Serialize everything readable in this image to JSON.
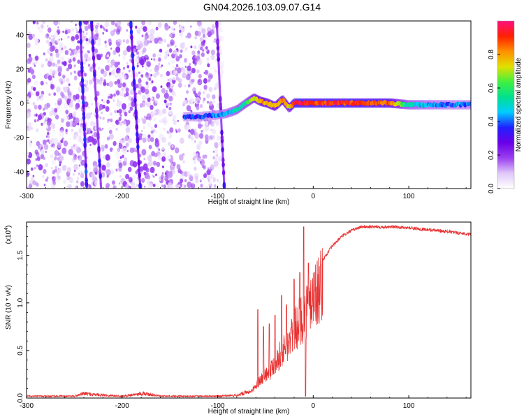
{
  "figure": {
    "title": "GN04.2026.103.09.07.G14"
  },
  "chart_data": [
    {
      "type": "heatmap",
      "panel": "spectrogram",
      "title": "GN04.2026.103.09.07.G14",
      "xlabel": "Height of straight line (km)",
      "ylabel": "Frequency (Hz)",
      "xlim": [
        -300,
        165
      ],
      "ylim": [
        -50,
        48
      ],
      "x_ticks": [
        -300,
        -200,
        -100,
        0,
        100
      ],
      "y_ticks": [
        -40,
        -20,
        0,
        20,
        40
      ],
      "colorbar": {
        "label": "Normalized spectral amplitude",
        "range": [
          0.0,
          1.0
        ],
        "ticks": [
          "0.0",
          "0.2",
          "0.4",
          "0.6",
          "0.8"
        ],
        "tick_values": [
          0.0,
          0.2,
          0.4,
          0.6,
          0.8
        ],
        "colors": [
          "#ffffff",
          "#e0c8f8",
          "#9a40f0",
          "#6a00e8",
          "#2020ff",
          "#00ccff",
          "#00e090",
          "#40f040",
          "#e0e000",
          "#ff9000",
          "#ff2000",
          "#ff1080"
        ]
      },
      "ridge": {
        "description": "carrier frequency vs height",
        "x": [
          -135,
          -120,
          -100,
          -90,
          -80,
          -70,
          -62,
          -55,
          -48,
          -40,
          -32,
          -25,
          -20,
          -10,
          0,
          20,
          50,
          80,
          100,
          120,
          140,
          165
        ],
        "y": [
          -8,
          -8,
          -7,
          -6,
          -4,
          0,
          3,
          1,
          0,
          -2,
          2,
          -3,
          0,
          0,
          0,
          0,
          0,
          0,
          -1,
          -1,
          -1,
          -1
        ],
        "amplitude": [
          0.35,
          0.35,
          0.4,
          0.45,
          0.5,
          0.55,
          0.7,
          0.8,
          0.8,
          0.75,
          0.85,
          0.7,
          0.9,
          0.95,
          0.9,
          0.9,
          0.9,
          0.85,
          0.5,
          0.45,
          0.4,
          0.4
        ]
      },
      "streaks": [
        {
          "x0": -244,
          "x1": -237,
          "amplitude": 0.25
        },
        {
          "x0": -232,
          "x1": -222,
          "amplitude": 0.2
        },
        {
          "x0": -191,
          "x1": -181,
          "amplitude": 0.25
        },
        {
          "x0": -101,
          "x1": -93,
          "amplitude": 0.2
        }
      ],
      "noise_region": {
        "x_from": -300,
        "x_to": -95
      }
    },
    {
      "type": "line",
      "panel": "snr",
      "xlabel": "Height of straight line (km)",
      "ylabel": "SNR (10 * v/v)",
      "y_scale_label": "(x10",
      "y_scale_exp": "4",
      "xlim": [
        -300,
        165
      ],
      "ylim": [
        0,
        1.85
      ],
      "x_ticks": [
        -300,
        -200,
        -100,
        0,
        100
      ],
      "y_ticks": [
        0.0,
        0.5,
        1.0,
        1.5
      ],
      "y_tick_labels": [
        "0.0",
        "0.5",
        "1.0",
        "1.5"
      ],
      "color": "#e83030",
      "envelope_x": [
        -300,
        -250,
        -240,
        -230,
        -200,
        -180,
        -170,
        -160,
        -100,
        -80,
        -70,
        -65,
        -60,
        -55,
        -50,
        -45,
        -40,
        -35,
        -30,
        -25,
        -20,
        -15,
        -10,
        -5,
        0,
        10,
        20,
        30,
        40,
        50,
        60,
        80,
        100,
        120,
        140,
        165
      ],
      "envelope_y": [
        0.02,
        0.02,
        0.05,
        0.04,
        0.02,
        0.05,
        0.04,
        0.02,
        0.02,
        0.03,
        0.06,
        0.09,
        0.15,
        0.25,
        0.3,
        0.35,
        0.45,
        0.55,
        0.62,
        0.7,
        0.85,
        0.95,
        1.05,
        1.15,
        1.3,
        1.45,
        1.6,
        1.7,
        1.76,
        1.8,
        1.8,
        1.8,
        1.79,
        1.77,
        1.75,
        1.72
      ],
      "spikes": [
        {
          "x": -58,
          "y": 0.93
        },
        {
          "x": -52,
          "y": 0.75
        },
        {
          "x": -46,
          "y": 0.78
        },
        {
          "x": -40,
          "y": 0.87
        },
        {
          "x": -33,
          "y": 1.08
        },
        {
          "x": -28,
          "y": 0.98
        },
        {
          "x": -20,
          "y": 1.25
        },
        {
          "x": -14,
          "y": 1.32
        },
        {
          "x": -10,
          "y": 1.8
        },
        {
          "x": -8,
          "y": 0.02
        },
        {
          "x": -5,
          "y": 1.42
        }
      ]
    }
  ]
}
